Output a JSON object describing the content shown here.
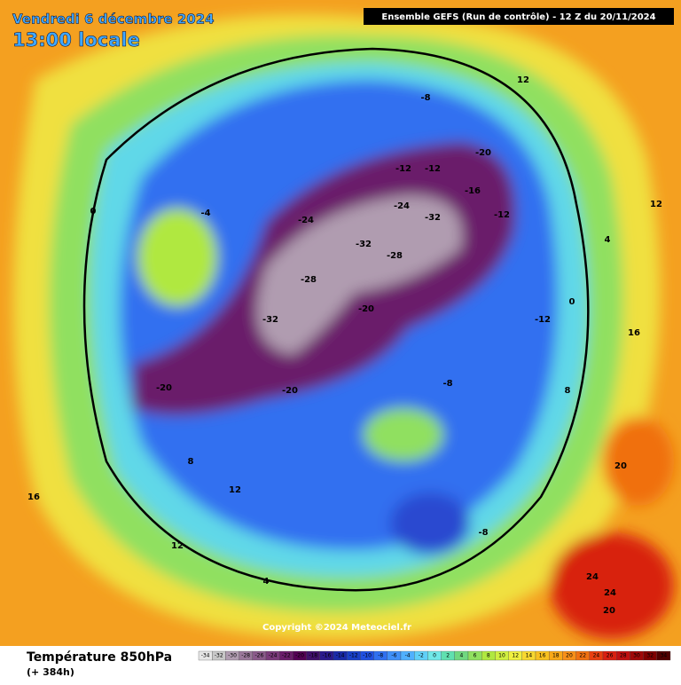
{
  "header": {
    "date": "Vendredi 6 décembre 2024",
    "time": "13:00 locale",
    "run": "Ensemble GEFS  (Run de contrôle)  -  12 Z du 20/11/2024"
  },
  "copyright": "Copyright ©2024 Meteociel.fr",
  "legend": {
    "title": "Température 850hPa",
    "lead": "(+ 384h)"
  },
  "scale": {
    "values": [
      -34,
      -32,
      -30,
      -28,
      -26,
      -24,
      -22,
      -20,
      -18,
      -16,
      -14,
      -12,
      -10,
      -8,
      -6,
      -4,
      -2,
      0,
      2,
      4,
      6,
      8,
      10,
      12,
      14,
      16,
      18,
      20,
      22,
      24,
      26,
      28,
      30,
      32,
      34
    ],
    "colors": [
      "#e6e6e6",
      "#c8c8c8",
      "#b09cb0",
      "#9a789a",
      "#8a5a8a",
      "#7a3a7a",
      "#6a1e6a",
      "#540054",
      "#40106a",
      "#2a1a8c",
      "#1a2aa8",
      "#1a40c8",
      "#2050e0",
      "#3070f0",
      "#4090f8",
      "#50b0ff",
      "#60d0f8",
      "#70e8e8",
      "#60e0b0",
      "#70d880",
      "#90e060",
      "#b0e840",
      "#d0f040",
      "#f0f040",
      "#f8d830",
      "#f8c020",
      "#f8a818",
      "#f89018",
      "#f07010",
      "#e84010",
      "#d82010",
      "#c01010",
      "#a00808",
      "#800000",
      "#500000"
    ]
  },
  "contour_labels": [
    -8,
    -12,
    -12,
    -20,
    -16,
    -24,
    -32,
    -28,
    -32,
    -24,
    -20,
    -28,
    -32,
    -20,
    -12,
    -12,
    -8,
    0,
    4,
    8,
    12,
    12,
    16,
    20,
    24,
    24,
    20,
    12,
    16,
    4,
    -4,
    0,
    8,
    12,
    -20,
    -8
  ]
}
